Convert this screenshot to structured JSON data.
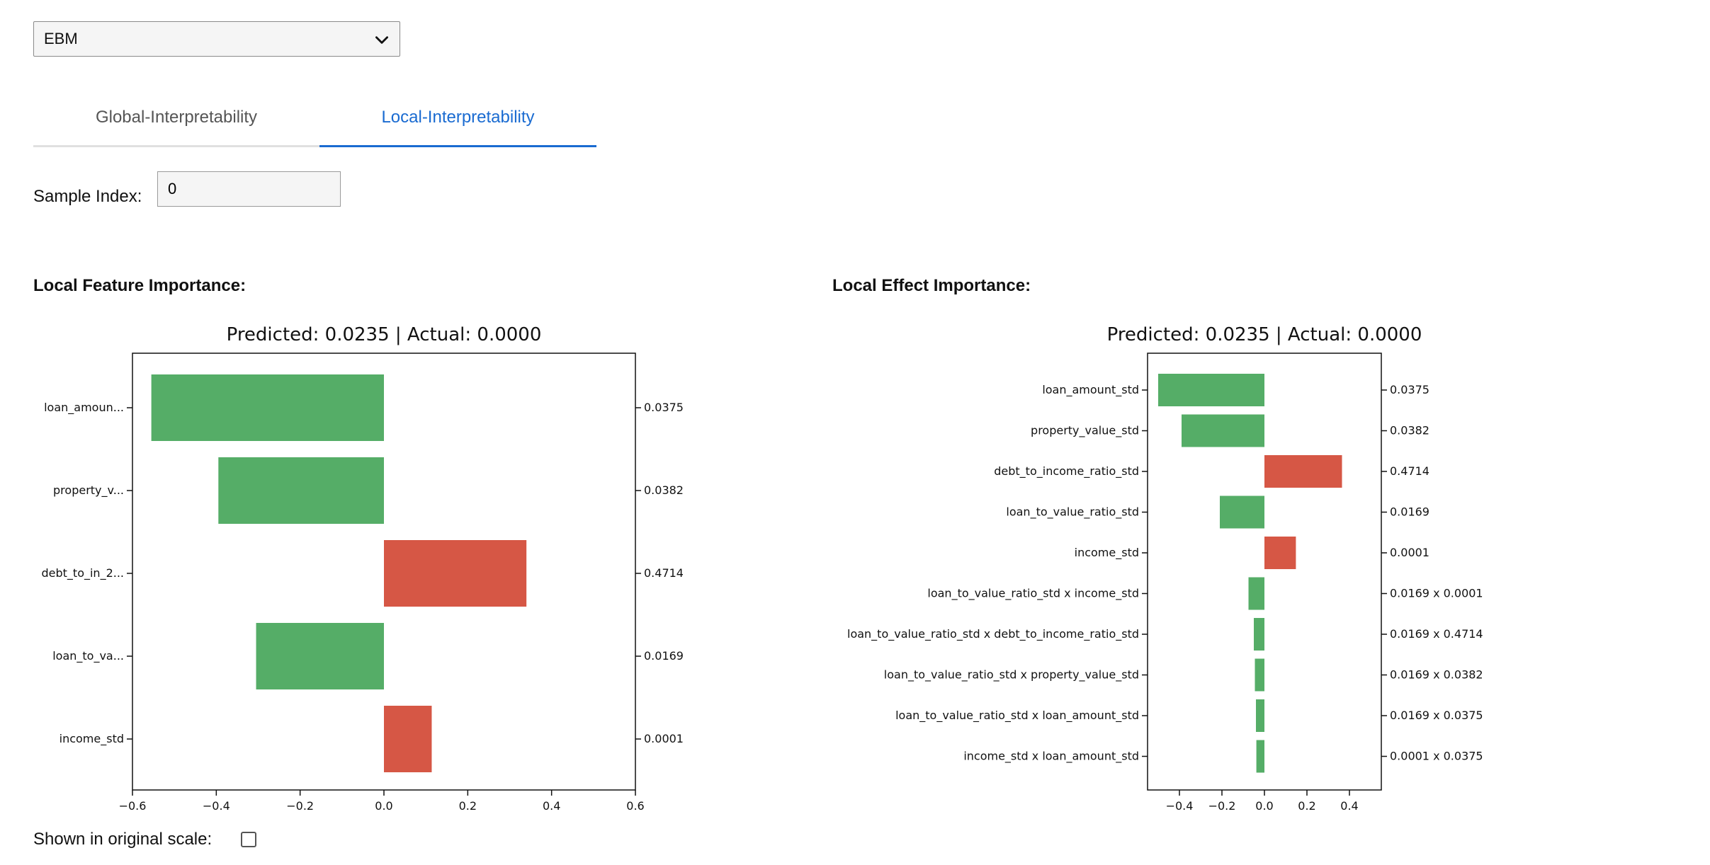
{
  "model_select": {
    "value": "EBM"
  },
  "tabs": [
    {
      "label": "Global-Interpretability",
      "active": false
    },
    {
      "label": "Local-Interpretability",
      "active": true
    }
  ],
  "sample_index": {
    "label": "Sample Index:",
    "value": "0"
  },
  "sections": {
    "feature_title": "Local Feature Importance:",
    "effect_title": "Local Effect Importance:"
  },
  "original_scale": {
    "label": "Shown in original scale:",
    "checked": false
  },
  "colors": {
    "positive": "#d65745",
    "negative": "#55ad67",
    "accent": "#1a6bd1"
  },
  "chart_data": [
    {
      "type": "bar",
      "orientation": "horizontal",
      "title": "Predicted: 0.0235 | Actual: 0.0000",
      "categories": [
        "loan_amoun...",
        "property_v...",
        "debt_to_in_2...",
        "loan_to_va...",
        "income_std"
      ],
      "values": [
        -0.555,
        -0.395,
        0.34,
        -0.305,
        0.114
      ],
      "right_labels": [
        "0.0375",
        "0.0382",
        "0.4714",
        "0.0169",
        "0.0001"
      ],
      "xlim": [
        -0.6,
        0.6
      ],
      "xticks": [
        -0.6,
        -0.4,
        -0.2,
        0.0,
        0.2,
        0.4,
        0.6
      ],
      "xtick_labels": [
        "−0.6",
        "−0.4",
        "−0.2",
        "0.0",
        "0.2",
        "0.4",
        "0.6"
      ]
    },
    {
      "type": "bar",
      "orientation": "horizontal",
      "title": "Predicted: 0.0235 | Actual: 0.0000",
      "categories": [
        "loan_amount_std",
        "property_value_std",
        "debt_to_income_ratio_std",
        "loan_to_value_ratio_std",
        "income_std",
        "loan_to_value_ratio_std x income_std",
        "loan_to_value_ratio_std x debt_to_income_ratio_std",
        "loan_to_value_ratio_std x property_value_std",
        "loan_to_value_ratio_std x loan_amount_std",
        "income_std x loan_amount_std"
      ],
      "values": [
        -0.5,
        -0.39,
        0.365,
        -0.21,
        0.148,
        -0.075,
        -0.05,
        -0.045,
        -0.04,
        -0.038
      ],
      "right_labels": [
        "0.0375",
        "0.0382",
        "0.4714",
        "0.0169",
        "0.0001",
        "0.0169 x 0.0001",
        "0.0169 x 0.4714",
        "0.0169 x 0.0382",
        "0.0169 x 0.0375",
        "0.0001 x 0.0375"
      ],
      "xlim": [
        -0.55,
        0.55
      ],
      "xticks": [
        -0.4,
        -0.2,
        0.0,
        0.2,
        0.4
      ],
      "xtick_labels": [
        "−0.4",
        "−0.2",
        "0.0",
        "0.2",
        "0.4"
      ]
    }
  ]
}
